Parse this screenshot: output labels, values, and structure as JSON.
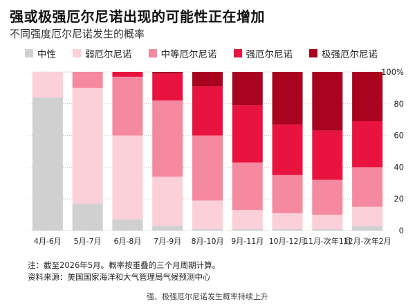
{
  "header": {
    "title": "强或极强厄尔尼诺出现的可能性正在增加",
    "subtitle": "不同强度厄尔尼诺发生的概率"
  },
  "footer": {
    "note": "注：截至2026年5月。概率按重叠的三个月周期计算。",
    "source": "资料来源：美国国家海洋和大气管理局气候预测中心",
    "caption": "强、极强厄尔尼诺发生概率持续上升"
  },
  "chart_data": {
    "type": "bar",
    "stacked": true,
    "title": "强或极强厄尔尼诺出现的可能性正在增加",
    "subtitle": "不同强度厄尔尼诺发生的概率",
    "categories": [
      "4月-6月",
      "5月-7月",
      "6月-8月",
      "7月-9月",
      "8月-10月",
      "9月-11月",
      "10月-12月",
      "11月-次年1月",
      "12月-次年2月"
    ],
    "ylim": [
      0,
      100
    ],
    "yticks": [
      0,
      20,
      40,
      60,
      80,
      100
    ],
    "ytick_labels": [
      "0",
      "20",
      "40",
      "60",
      "80",
      "100%"
    ],
    "legend_position": "top",
    "series": [
      {
        "name": "中性",
        "color": "#d0d0d0",
        "values": [
          84,
          17,
          7,
          3,
          1,
          1,
          1,
          1,
          3
        ]
      },
      {
        "name": "弱厄尔尼诺",
        "color": "#fbd0d8",
        "values": [
          16,
          73,
          53,
          31,
          18,
          12,
          10,
          9,
          12
        ]
      },
      {
        "name": "中等厄尔尼诺",
        "color": "#f4899f",
        "values": [
          0,
          10,
          37,
          48,
          41,
          30,
          24,
          22,
          25
        ]
      },
      {
        "name": "强厄尔尼诺",
        "color": "#e8133f",
        "values": [
          0,
          0,
          3,
          17,
          31,
          36,
          32,
          31,
          29
        ]
      },
      {
        "name": "极强厄尔尼诺",
        "color": "#a8031f",
        "values": [
          0,
          0,
          0,
          1,
          9,
          21,
          33,
          37,
          31
        ]
      }
    ]
  }
}
